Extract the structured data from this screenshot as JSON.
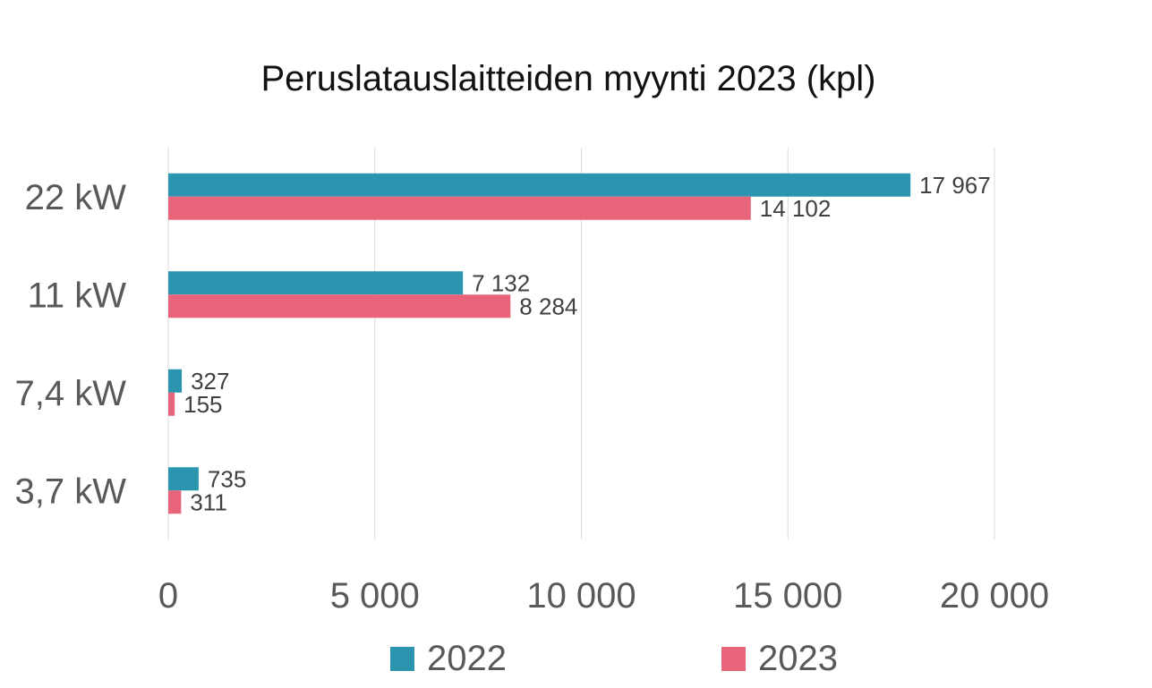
{
  "chart_data": {
    "type": "bar",
    "orientation": "horizontal",
    "title": "Peruslatauslaitteiden myynti 2023 (kpl)",
    "categories": [
      "22 kW",
      "11 kW",
      "7,4 kW",
      "3,7 kW"
    ],
    "series": [
      {
        "name": "2022",
        "color": "#2b95b0",
        "values": [
          17967,
          7132,
          327,
          735
        ],
        "labels": [
          "17 967",
          "7 132",
          "327",
          "735"
        ]
      },
      {
        "name": "2023",
        "color": "#e8647a",
        "values": [
          14102,
          8284,
          155,
          311
        ],
        "labels": [
          "14 102",
          "8 284",
          "155",
          "311"
        ]
      }
    ],
    "xlim": [
      0,
      20000
    ],
    "x_ticks": [
      0,
      5000,
      10000,
      15000,
      20000
    ],
    "x_tick_labels": [
      "0",
      "5 000",
      "10 000",
      "15 000",
      "20 000"
    ],
    "grid": "vertical",
    "legend": "bottom"
  }
}
